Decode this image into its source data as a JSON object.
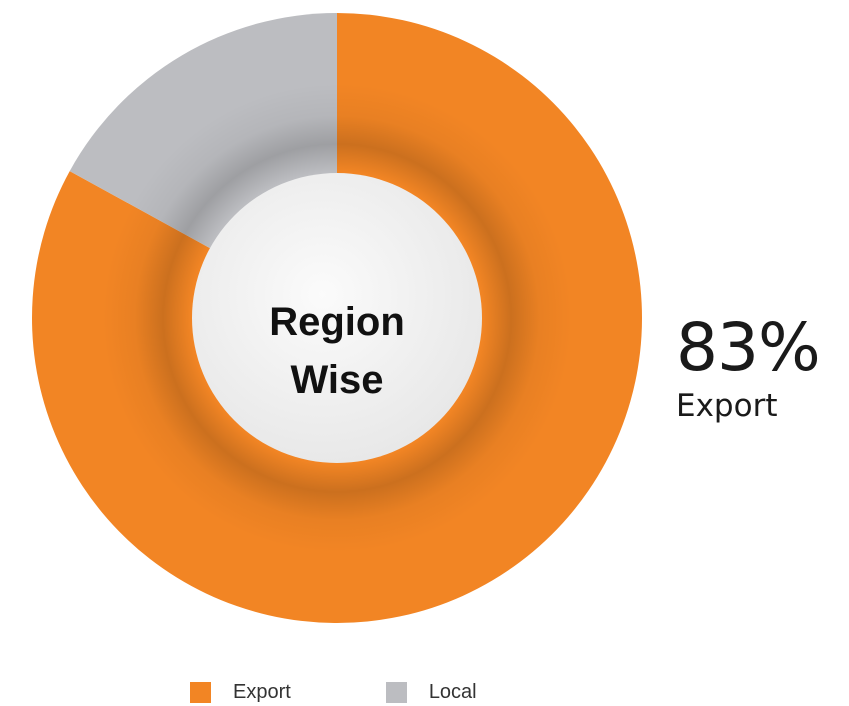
{
  "chart_data": {
    "type": "pie",
    "categories": [
      "Export",
      "Local"
    ],
    "values": [
      83,
      17
    ],
    "unit": "%",
    "colors": {
      "Export": "#f28524",
      "Local": "#bcbdc1",
      "center_fill": "#f2f2f2",
      "text": "#111111"
    },
    "center_title": [
      "Region",
      "Wise"
    ],
    "callout": {
      "value": "83%",
      "label": "Export"
    },
    "legend": [
      {
        "label": "Export",
        "color": "#f28524"
      },
      {
        "label": "Local",
        "color": "#bcbdc1"
      }
    ],
    "legend_placement": "bottom"
  }
}
